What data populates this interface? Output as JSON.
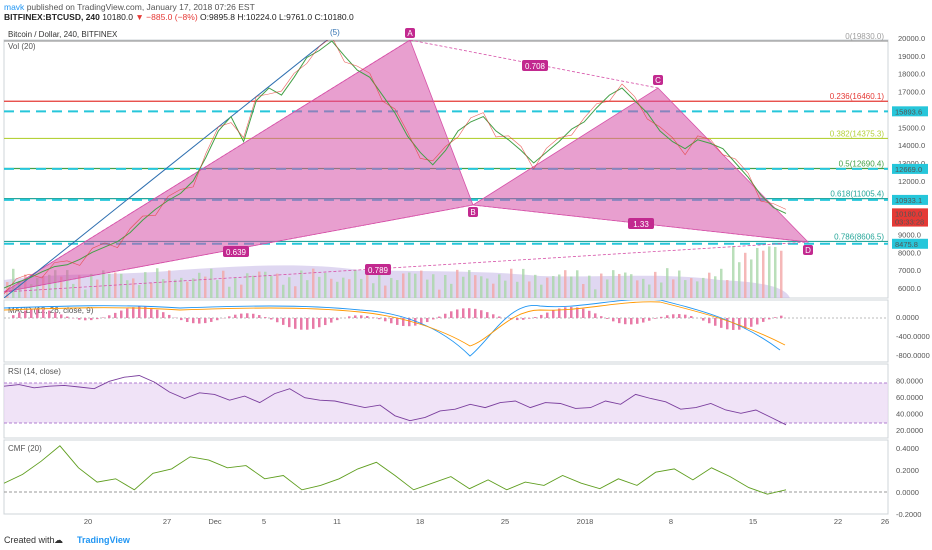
{
  "header": {
    "user": "mavk",
    "published": "published on TradingView.com, January 17, 2018 07:26 EST",
    "symbol": "BITFINEX:BTCUSD, 240",
    "last": "10180.0",
    "change": "−885.0 (−8%)",
    "open": "O:9895.8",
    "high": "H:10224.0",
    "low": "L:9761.0",
    "close": "C:10180.0"
  },
  "footer": {
    "created": "Created with",
    "brand": "TradingView"
  },
  "panes": {
    "main": "Bitcoin / Dollar, 240, BITFINEX",
    "vol": "Vol (20)",
    "macd": "MACD (12, 26, close, 9)",
    "rsi": "RSI (14, close)",
    "cmf": "CMF (20)"
  },
  "chart_data": {
    "type": "line",
    "price_axis": [
      "20000.0",
      "19000.0",
      "18000.0",
      "17000.0",
      "16000.0",
      "15000.0",
      "14000.0",
      "13000.0",
      "12000.0",
      "11000.0",
      "10000.0",
      "9000.0",
      "8000.0",
      "7000.0",
      "6000.0"
    ],
    "macd_axis": [
      "0.0000",
      "-400.0000",
      "-800.0000"
    ],
    "rsi_axis": [
      "80.0000",
      "60.0000",
      "40.0000",
      "20.0000"
    ],
    "cmf_axis": [
      "0.4000",
      "0.2000",
      "0.0000",
      "-0.2000"
    ],
    "date_axis": [
      "20",
      "27",
      "Dec",
      "5",
      "11",
      "18",
      "25",
      "2018",
      "8",
      "15",
      "22",
      "26"
    ],
    "axis_badges": [
      {
        "label": "15893.6",
        "color": "#26c6da"
      },
      {
        "label": "12669.0",
        "color": "#26c6da"
      },
      {
        "label": "10933.1",
        "color": "#26c6da"
      },
      {
        "label": "10180.0",
        "color": "#e53935"
      },
      {
        "label": "03:33:28",
        "color": "#e53935"
      },
      {
        "label": "8475.8",
        "color": "#26c6da"
      }
    ],
    "fib_levels": [
      {
        "label": "0(19830.0)",
        "price": 19830,
        "color": "#9e9e9e"
      },
      {
        "label": "0.236(16460.1)",
        "price": 16460.1,
        "color": "#e53935"
      },
      {
        "label": "0.382(14375.3)",
        "price": 14375.3,
        "color": "#b5d13a"
      },
      {
        "label": "0.5(12690.4)",
        "price": 12690.4,
        "color": "#43a047"
      },
      {
        "label": "0.618(11005.4)",
        "price": 11005.4,
        "color": "#26a69a"
      },
      {
        "label": "0.786(8606.5)",
        "price": 8606.5,
        "color": "#26a69a"
      }
    ],
    "pattern_points": [
      {
        "label": "A",
        "price": 19830
      },
      {
        "label": "B",
        "price": 10400
      },
      {
        "label": "C",
        "price": 17200
      },
      {
        "label": "D",
        "price": 8475
      }
    ],
    "ratios": [
      "0.708",
      "1.33",
      "0.639",
      "0.789"
    ],
    "wave_label": "(5)",
    "price_series": [
      6000,
      6300,
      6550,
      6900,
      7200,
      7300,
      7600,
      8000,
      8300,
      8600,
      9100,
      9800,
      10400,
      10900,
      11300,
      12000,
      13300,
      14800,
      15600,
      14200,
      16500,
      17200,
      16800,
      17800,
      18900,
      19300,
      19830,
      19000,
      18200,
      17800,
      16800,
      15800,
      14500,
      13600,
      12900,
      13700,
      14800,
      15300,
      15600,
      14800,
      14300,
      13700,
      13000,
      13600,
      14200,
      14900,
      15300,
      16100,
      16800,
      17200,
      16500,
      15800,
      14800,
      14200,
      13800,
      14300,
      14100,
      13800,
      13000,
      12200,
      11200,
      10500,
      10180
    ],
    "rsi_series": [
      73,
      75,
      71,
      73,
      74,
      72,
      70,
      79,
      84,
      86,
      78,
      66,
      58,
      65,
      63,
      56,
      61,
      53,
      64,
      70,
      59,
      56,
      55,
      51,
      47,
      50,
      37,
      31,
      35,
      43,
      45,
      51,
      47,
      53,
      55,
      47,
      53,
      52,
      46,
      47,
      55,
      51,
      63,
      58,
      54,
      45,
      47,
      52,
      44,
      40,
      44,
      35,
      26
    ],
    "cmf_series": [
      0.08,
      0.16,
      0.28,
      0.42,
      0.22,
      0.09,
      0.12,
      0.02,
      0.17,
      0.21,
      0.32,
      0.29,
      0.22,
      0.24,
      0.12,
      0.15,
      0.02,
      0.06,
      0.12,
      0.21,
      0.27,
      0.15,
      0.02,
      0.08,
      0.14,
      0.03,
      0.11,
      0.02,
      0.09,
      0.06,
      0.15,
      0.08,
      0.03,
      0.12,
      0.06,
      0.18,
      0.21,
      0.11,
      0.22,
      0.14,
      0.04,
      -0.02,
      0.02
    ]
  }
}
